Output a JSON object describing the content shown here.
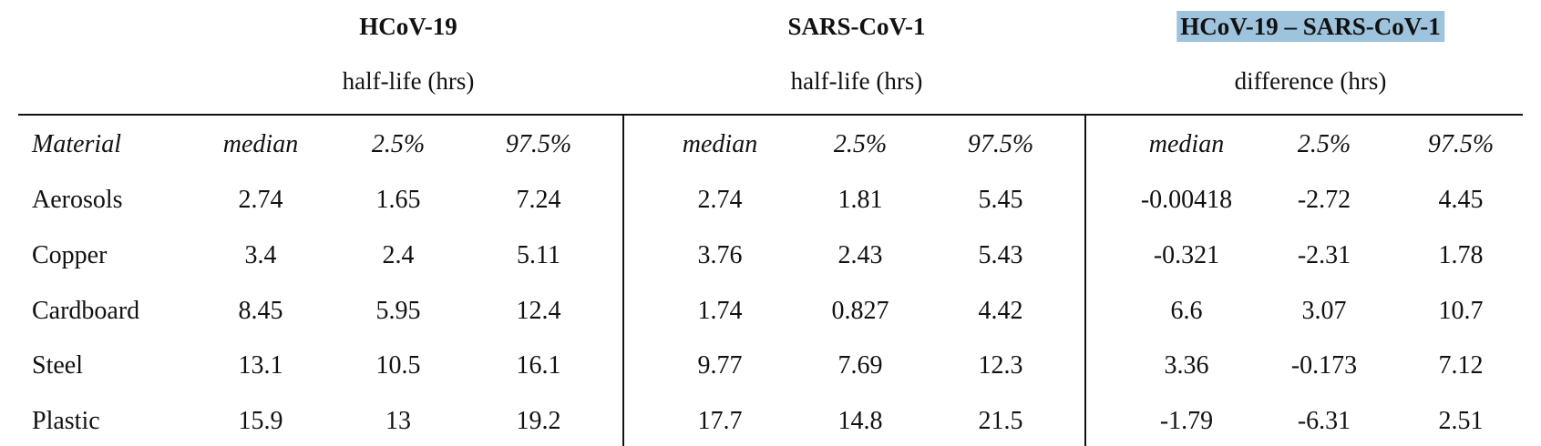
{
  "groups": [
    {
      "title": "HCoV-19",
      "subtitle": "half-life (hrs)"
    },
    {
      "title": "SARS-CoV-1",
      "subtitle": "half-life (hrs)"
    },
    {
      "title": "HCoV-19 – SARS-CoV-1",
      "subtitle": "difference (hrs)",
      "highlight_color": "#9ec3dc"
    }
  ],
  "headers": [
    "Material",
    "median",
    "2.5%",
    "97.5%",
    "median",
    "2.5%",
    "97.5%",
    "median",
    "2.5%",
    "97.5%"
  ],
  "rows": [
    [
      "Aerosols",
      "2.74",
      "1.65",
      "7.24",
      "2.74",
      "1.81",
      "5.45",
      "-0.00418",
      "-2.72",
      "4.45"
    ],
    [
      "Copper",
      "3.4",
      "2.4",
      "5.11",
      "3.76",
      "2.43",
      "5.43",
      "-0.321",
      "-2.31",
      "1.78"
    ],
    [
      "Cardboard",
      "8.45",
      "5.95",
      "12.4",
      "1.74",
      "0.827",
      "4.42",
      "6.6",
      "3.07",
      "10.7"
    ],
    [
      "Steel",
      "13.1",
      "10.5",
      "16.1",
      "9.77",
      "7.69",
      "12.3",
      "3.36",
      "-0.173",
      "7.12"
    ],
    [
      "Plastic",
      "15.9",
      "13",
      "19.2",
      "17.7",
      "14.8",
      "21.5",
      "-1.79",
      "-6.31",
      "2.51"
    ]
  ]
}
